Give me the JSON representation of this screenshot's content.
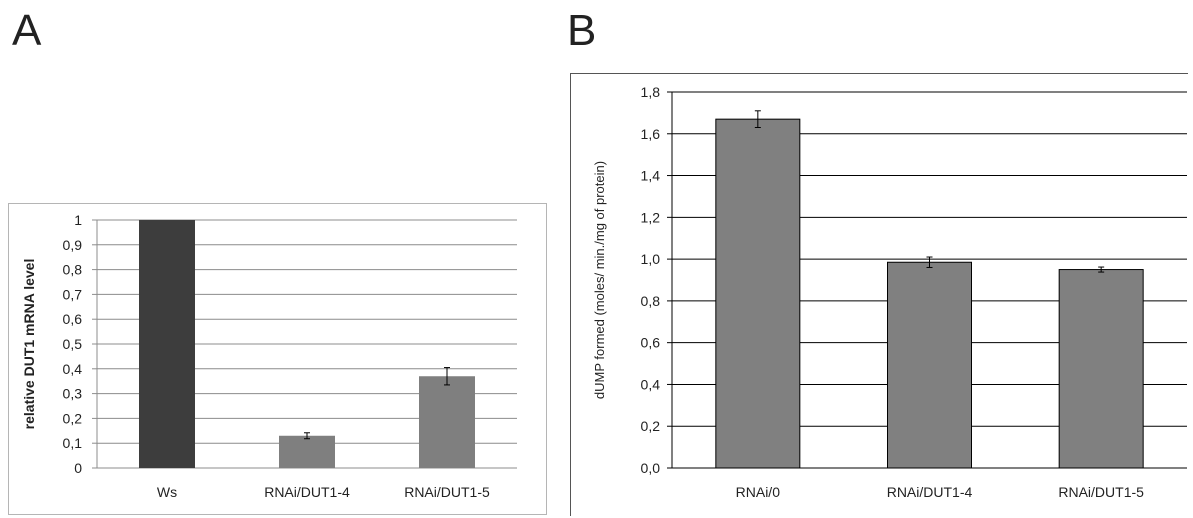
{
  "panels": {
    "a_label": "A",
    "b_label": "B"
  },
  "chart_data": [
    {
      "type": "bar",
      "panel": "A",
      "title": "",
      "xlabel": "",
      "ylabel": "relative DUT1 mRNA  level",
      "categories": [
        "Ws",
        "RNAi/DUT1-4",
        "RNAi/DUT1-5"
      ],
      "values": [
        1.0,
        0.13,
        0.37
      ],
      "errors": [
        0.0,
        0.012,
        0.035
      ],
      "bar_colors": [
        "#3d3d3d",
        "#7f7f7f",
        "#7f7f7f"
      ],
      "ylim": [
        0,
        1
      ],
      "yticks": [
        0,
        0.1,
        0.2,
        0.3,
        0.4,
        0.5,
        0.6,
        0.7,
        0.8,
        0.9,
        1
      ],
      "ytick_labels": [
        "0",
        "0,1",
        "0,2",
        "0,3",
        "0,4",
        "0,5",
        "0,6",
        "0,7",
        "0,8",
        "0,9",
        "1"
      ],
      "grid": true
    },
    {
      "type": "bar",
      "panel": "B",
      "title": "",
      "xlabel": "",
      "ylabel": "dUMP formed (moles/ min./mg of protein)",
      "categories": [
        "RNAi/0",
        "RNAi/DUT1-4",
        "RNAi/DUT1-5"
      ],
      "values": [
        1.67,
        0.985,
        0.95
      ],
      "errors": [
        0.04,
        0.025,
        0.012
      ],
      "bar_colors": [
        "#808080",
        "#808080",
        "#808080"
      ],
      "ylim": [
        0,
        1.8
      ],
      "yticks": [
        0,
        0.2,
        0.4,
        0.6,
        0.8,
        1.0,
        1.2,
        1.4,
        1.6,
        1.8
      ],
      "ytick_labels": [
        "0,0",
        "0,2",
        "0,4",
        "0,6",
        "0,8",
        "1,0",
        "1,2",
        "1,4",
        "1,6",
        "1,8"
      ],
      "grid": true
    }
  ]
}
